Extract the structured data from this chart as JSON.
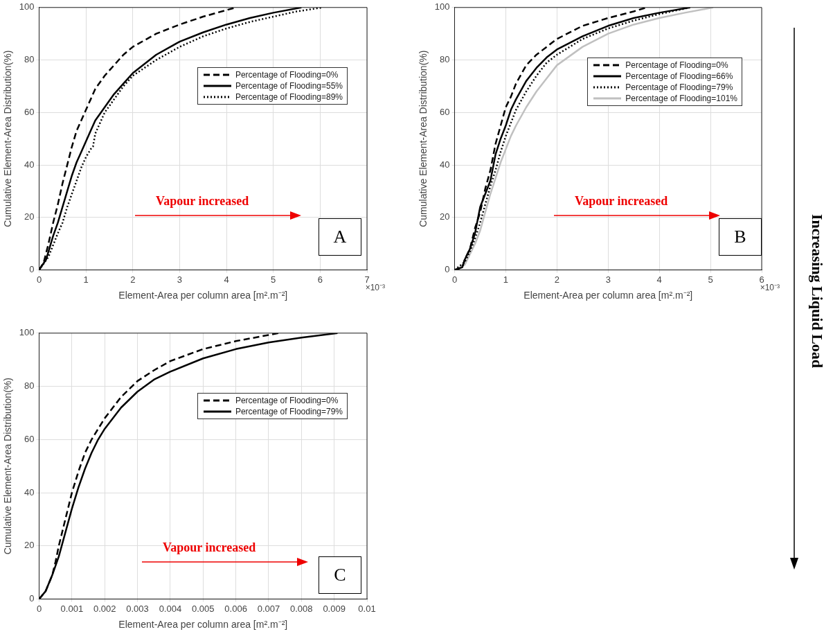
{
  "chart_data": [
    {
      "type": "line",
      "xlabel": "Element-Area per column area [m².m⁻²]",
      "ylabel": "Cumulative Element-Area Distribution(%)",
      "xlim": [
        0,
        7
      ],
      "ylim": [
        0,
        100
      ],
      "xticks": [
        0,
        1,
        2,
        3,
        4,
        5,
        6,
        7
      ],
      "yticks": [
        0,
        20,
        40,
        60,
        80,
        100
      ],
      "grid": true,
      "legend": "top right",
      "annotations": [
        "×10⁻³",
        "Vapour increased",
        "A"
      ],
      "series": [
        {
          "name": "Percentage of Flooding=0%",
          "color": "#000000",
          "line_style": "dashed",
          "x": [
            0,
            0.1,
            0.2,
            0.3,
            0.4,
            0.5,
            0.6,
            0.7,
            0.8,
            0.9,
            1.0,
            1.1,
            1.2,
            1.4,
            1.6,
            1.8,
            2.0,
            2.5,
            3.0,
            3.5,
            4.0,
            4.2
          ],
          "values": [
            0,
            3,
            10,
            18,
            25,
            33,
            40,
            47,
            53,
            57,
            61,
            65,
            69,
            74,
            78,
            82,
            85,
            90,
            93.5,
            96.5,
            99,
            100
          ]
        },
        {
          "name": "Percentage of Flooding=55%",
          "color": "#000000",
          "line_style": "solid",
          "x": [
            0,
            0.15,
            0.3,
            0.4,
            0.5,
            0.6,
            0.7,
            0.8,
            0.9,
            1.0,
            1.1,
            1.2,
            1.4,
            1.6,
            1.8,
            2.0,
            2.5,
            3.0,
            3.5,
            4.0,
            4.5,
            5.0,
            5.6
          ],
          "values": [
            0,
            4,
            13,
            18,
            24,
            30,
            36,
            41,
            45,
            49,
            53,
            57,
            62,
            67,
            71,
            75,
            82,
            87,
            90.5,
            93.5,
            96,
            98,
            100
          ]
        },
        {
          "name": "Percentage of Flooding=89%",
          "color": "#000000",
          "line_style": "dotted",
          "x": [
            0,
            0.2,
            0.4,
            0.5,
            0.6,
            0.7,
            0.8,
            0.9,
            1.0,
            1.1,
            1.15,
            1.2,
            1.4,
            1.6,
            1.8,
            2.0,
            2.5,
            3.0,
            3.5,
            4.0,
            4.5,
            5.0,
            5.5,
            6.05
          ],
          "values": [
            0,
            5,
            14,
            18,
            24,
            29,
            34,
            39,
            43,
            46,
            47,
            52,
            60,
            65,
            70,
            74,
            80,
            85,
            89,
            92,
            94.5,
            96.5,
            98.5,
            100
          ]
        }
      ]
    },
    {
      "type": "line",
      "xlabel": "Element-Area per column area [m².m⁻²]",
      "ylabel": "Cumulative Element-Area Distribution(%)",
      "xlim": [
        0,
        6
      ],
      "ylim": [
        0,
        100
      ],
      "xticks": [
        0,
        1,
        2,
        3,
        4,
        5,
        6
      ],
      "yticks": [
        0,
        20,
        40,
        60,
        80,
        100
      ],
      "grid": true,
      "legend": "top right",
      "annotations": [
        "×10⁻³",
        "Vapour increased",
        "B",
        "Increasing Liquid Load"
      ],
      "series": [
        {
          "name": "Percentage of Flooding=0%",
          "color": "#000000",
          "line_style": "dashed",
          "x": [
            0,
            0.15,
            0.2,
            0.3,
            0.4,
            0.5,
            0.6,
            0.7,
            0.8,
            0.9,
            1.0,
            1.1,
            1.2,
            1.4,
            1.6,
            1.8,
            2.0,
            2.5,
            3.0,
            3.5,
            3.75
          ],
          "values": [
            0,
            1,
            4,
            8,
            16,
            22,
            31,
            38,
            48,
            55,
            62,
            66,
            71,
            78,
            82,
            85,
            88,
            93,
            96,
            98.5,
            100
          ]
        },
        {
          "name": "Percentage of Flooding=66%",
          "color": "#000000",
          "line_style": "solid",
          "x": [
            0,
            0.15,
            0.2,
            0.3,
            0.4,
            0.5,
            0.6,
            0.7,
            0.8,
            0.9,
            1.0,
            1.1,
            1.2,
            1.4,
            1.6,
            1.8,
            2.0,
            2.5,
            3.0,
            3.5,
            4.0,
            4.6
          ],
          "values": [
            0,
            1,
            4,
            8,
            14,
            24,
            29,
            34,
            44,
            50,
            55,
            61,
            65,
            72,
            77,
            81,
            84,
            89,
            93,
            96,
            98,
            100
          ]
        },
        {
          "name": "Percentage of Flooding=79%",
          "color": "#000000",
          "line_style": "dotted",
          "x": [
            0,
            0.2,
            0.3,
            0.4,
            0.5,
            0.6,
            0.7,
            0.8,
            0.9,
            1.0,
            1.1,
            1.2,
            1.4,
            1.6,
            1.8,
            2.0,
            2.5,
            3.0,
            3.5,
            4.0,
            4.6
          ],
          "values": [
            0,
            3,
            7,
            12,
            18,
            25,
            32,
            38,
            45,
            51,
            56,
            61,
            68,
            74,
            79,
            82,
            88,
            92,
            95,
            97.5,
            100
          ]
        },
        {
          "name": "Percentage of Flooding=101%",
          "color": "#c0c0c0",
          "line_style": "solid",
          "x": [
            0,
            0.2,
            0.3,
            0.4,
            0.5,
            0.6,
            0.7,
            0.8,
            0.9,
            1.0,
            1.1,
            1.2,
            1.4,
            1.6,
            1.8,
            2.0,
            2.5,
            3.0,
            3.5,
            4.0,
            4.5,
            5.05
          ],
          "values": [
            0,
            2,
            6,
            10,
            15,
            22,
            29,
            35,
            41,
            46,
            51,
            55,
            62,
            68,
            73,
            78,
            85,
            90,
            93.5,
            96,
            98,
            100
          ]
        }
      ]
    },
    {
      "type": "line",
      "xlabel": "Element-Area per column area [m².m⁻²]",
      "ylabel": "Cumulative Element-Area Distribution(%)",
      "xlim": [
        0,
        0.01
      ],
      "ylim": [
        0,
        100
      ],
      "xticks": [
        0,
        0.001,
        0.002,
        0.003,
        0.004,
        0.005,
        0.006,
        0.007,
        0.008,
        0.009,
        0.01
      ],
      "yticks": [
        0,
        20,
        40,
        60,
        80,
        100
      ],
      "grid": true,
      "legend": "top right",
      "annotations": [
        "Vapour increased",
        "C"
      ],
      "series": [
        {
          "name": "Percentage of Flooding=0%",
          "color": "#000000",
          "line_style": "dashed",
          "x": [
            0,
            0.0002,
            0.0004,
            0.0005,
            0.0006,
            0.0008,
            0.001,
            0.0012,
            0.0014,
            0.0016,
            0.0018,
            0.002,
            0.0025,
            0.003,
            0.0035,
            0.004,
            0.005,
            0.006,
            0.007,
            0.0073
          ],
          "values": [
            0,
            3,
            9,
            14,
            20,
            30,
            40,
            48,
            55,
            60,
            64,
            68,
            76,
            82,
            86,
            89.5,
            94,
            97,
            99.3,
            100
          ]
        },
        {
          "name": "Percentage of Flooding=79%",
          "color": "#000000",
          "line_style": "solid",
          "x": [
            0,
            0.0002,
            0.0004,
            0.0006,
            0.0008,
            0.001,
            0.0012,
            0.0014,
            0.0016,
            0.0018,
            0.002,
            0.0025,
            0.003,
            0.0035,
            0.004,
            0.005,
            0.006,
            0.007,
            0.008,
            0.0091
          ],
          "values": [
            0,
            3,
            9,
            16,
            25,
            34,
            42,
            49,
            55,
            60,
            64,
            72,
            78,
            82.5,
            85.5,
            90.5,
            94,
            96.5,
            98.3,
            100
          ]
        }
      ]
    }
  ]
}
